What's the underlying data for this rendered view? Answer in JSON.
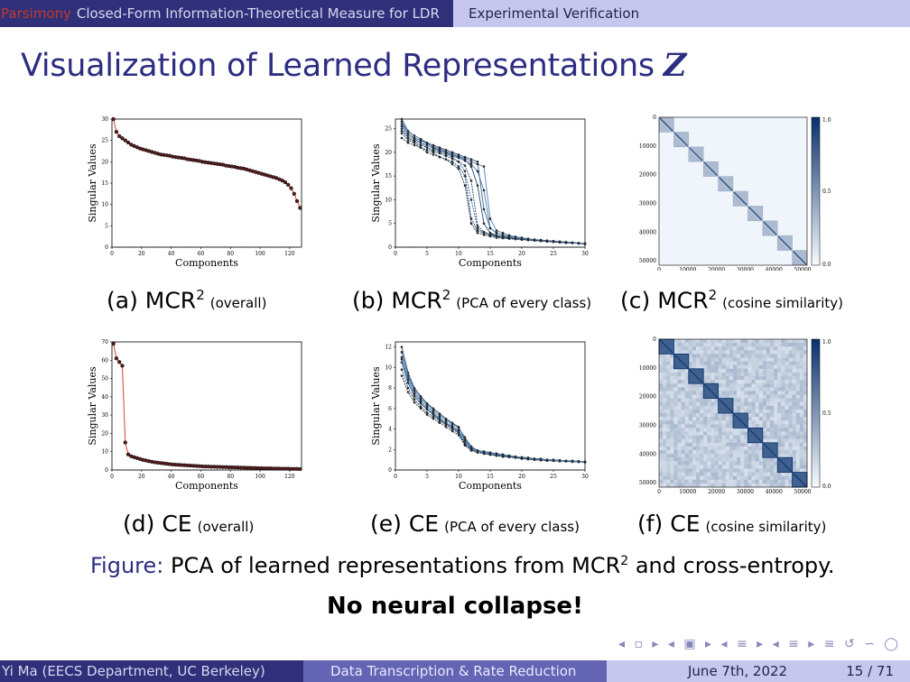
{
  "header": {
    "section": "Parsimony",
    "left_title": "Closed-Form Information-Theoretical Measure for LDR",
    "right_title": "Experimental Verification"
  },
  "slide": {
    "title": "Visualization of Learned Representations",
    "title_symbol": "Z"
  },
  "panels": [
    {
      "letter": "(a)",
      "method": "MCR",
      "sup": "2",
      "note": "(overall)"
    },
    {
      "letter": "(b)",
      "method": "MCR",
      "sup": "2",
      "note": "(PCA of every class)"
    },
    {
      "letter": "(c)",
      "method": "MCR",
      "sup": "2",
      "note": "(cosine similarity)"
    },
    {
      "letter": "(d)",
      "method": "CE",
      "sup": "",
      "note": "(overall)"
    },
    {
      "letter": "(e)",
      "method": "CE",
      "sup": "",
      "note": "(PCA of every class)"
    },
    {
      "letter": "(f)",
      "method": "CE",
      "sup": "",
      "note": "(cosine similarity)"
    }
  ],
  "figure": {
    "label": "Figure:",
    "text_a": "PCA of learned representations from MCR",
    "sup": "2",
    "text_b": "and cross-entropy."
  },
  "emphasis": "No neural collapse!",
  "nav_symbols": "◂ ▫ ▸ ◂ ▣ ▸ ◂ ≡ ▸ ◂ ≡ ▸ ≡ ↺ ∽ ◯",
  "footer": {
    "author": "Yi Ma (EECS Department, UC Berkeley)",
    "talk": "Data Transcription & Rate Reduction",
    "date": "June 7th, 2022",
    "page": "15 / 71"
  },
  "chart_data": [
    {
      "id": "a",
      "type": "scatter",
      "xlabel": "Components",
      "ylabel": "Singular Values",
      "xlim": [
        0,
        128
      ],
      "ylim": [
        0,
        30
      ],
      "xticks": [
        0,
        20,
        40,
        60,
        80,
        100,
        120
      ],
      "yticks": [
        0,
        5,
        10,
        15,
        20,
        25,
        30
      ],
      "x": [
        1,
        3,
        5,
        7,
        9,
        11,
        13,
        15,
        17,
        19,
        21,
        23,
        25,
        27,
        29,
        31,
        33,
        35,
        37,
        39,
        41,
        43,
        45,
        47,
        49,
        51,
        53,
        55,
        57,
        59,
        61,
        63,
        65,
        67,
        69,
        71,
        73,
        75,
        77,
        79,
        81,
        83,
        85,
        87,
        89,
        91,
        93,
        95,
        97,
        99,
        101,
        103,
        105,
        107,
        109,
        111,
        113,
        115,
        117,
        119,
        121,
        123,
        125,
        127
      ],
      "y": [
        30,
        27,
        26,
        25.5,
        25,
        24.5,
        24,
        23.7,
        23.4,
        23.1,
        22.9,
        22.7,
        22.5,
        22.3,
        22.1,
        21.9,
        21.7,
        21.6,
        21.5,
        21.4,
        21.2,
        21.1,
        21,
        20.9,
        20.8,
        20.6,
        20.5,
        20.4,
        20.3,
        20.2,
        20,
        19.9,
        19.8,
        19.7,
        19.6,
        19.5,
        19.4,
        19.3,
        19.1,
        19,
        18.9,
        18.8,
        18.6,
        18.5,
        18.4,
        18.2,
        18,
        17.8,
        17.6,
        17.4,
        17.2,
        17,
        16.8,
        16.6,
        16.4,
        16.2,
        15.9,
        15.6,
        15.2,
        14.6,
        13.8,
        12.5,
        10.8,
        9.2
      ]
    },
    {
      "id": "b",
      "type": "line",
      "xlabel": "Components",
      "ylabel": "Singular Values",
      "xlim": [
        0,
        30
      ],
      "ylim": [
        0,
        27
      ],
      "xticks": [
        0,
        5,
        10,
        15,
        20,
        25,
        30
      ],
      "yticks": [
        0,
        5,
        10,
        15,
        20,
        25
      ],
      "x": [
        1,
        2,
        3,
        4,
        5,
        6,
        7,
        8,
        9,
        10,
        11,
        12,
        13,
        14,
        15,
        16,
        17,
        18,
        19,
        20,
        21,
        22,
        23,
        24,
        25,
        26,
        27,
        28,
        29,
        30
      ],
      "series": [
        {
          "values": [
            26,
            24,
            23,
            22.5,
            22,
            21,
            20.5,
            20,
            19.5,
            19,
            18.5,
            17,
            13,
            5,
            3,
            2.5,
            2.2,
            2,
            1.8,
            1.7,
            1.6,
            1.5,
            1.4,
            1.3,
            1.2,
            1.1,
            1,
            0.9,
            0.8,
            0.7
          ]
        },
        {
          "values": [
            25,
            23,
            22.5,
            22,
            21,
            20.5,
            20,
            19.5,
            19,
            18,
            16,
            10,
            4,
            3,
            2.5,
            2.2,
            2,
            1.9,
            1.8,
            1.7,
            1.6,
            1.5,
            1.4,
            1.3,
            1.2,
            1.1,
            1,
            0.9,
            0.8,
            0.7
          ]
        },
        {
          "values": [
            27,
            24.5,
            23.5,
            22.8,
            22,
            21.5,
            21,
            20.5,
            20,
            19.5,
            19,
            18.5,
            18,
            8,
            4,
            3,
            2.5,
            2.2,
            2,
            1.8,
            1.6,
            1.5,
            1.4,
            1.3,
            1.2,
            1.1,
            1,
            0.9,
            0.8,
            0.7
          ]
        },
        {
          "values": [
            24,
            22.5,
            22,
            21,
            20.5,
            20,
            19,
            18.5,
            18,
            17,
            15,
            6,
            3.5,
            3,
            2.6,
            2.3,
            2,
            1.8,
            1.7,
            1.6,
            1.5,
            1.4,
            1.3,
            1.2,
            1.1,
            1,
            0.9,
            0.9,
            0.8,
            0.7
          ]
        },
        {
          "values": [
            25.5,
            23.5,
            22.8,
            22,
            21.5,
            20.8,
            20.2,
            19.8,
            19.2,
            18.8,
            18.2,
            17.5,
            16,
            12,
            4,
            3,
            2.6,
            2.3,
            2,
            1.8,
            1.7,
            1.6,
            1.5,
            1.4,
            1.2,
            1.1,
            1,
            0.9,
            0.8,
            0.7
          ]
        },
        {
          "values": [
            23,
            22,
            21.5,
            21,
            20,
            19.5,
            19,
            18.5,
            17.5,
            16.5,
            13,
            5,
            3,
            2.6,
            2.3,
            2,
            1.9,
            1.8,
            1.7,
            1.6,
            1.5,
            1.4,
            1.3,
            1.2,
            1.1,
            1,
            0.9,
            0.9,
            0.8,
            0.7
          ]
        },
        {
          "values": [
            26.5,
            24,
            23,
            22.5,
            21.8,
            21.2,
            20.8,
            20.2,
            19.8,
            19.2,
            18.8,
            18,
            17.5,
            17,
            6,
            3.5,
            3,
            2.5,
            2.2,
            2,
            1.8,
            1.6,
            1.5,
            1.4,
            1.3,
            1.2,
            1.1,
            1,
            0.9,
            0.8
          ]
        },
        {
          "values": [
            24.5,
            23,
            22.2,
            21.5,
            21,
            20.2,
            19.8,
            19.2,
            18.6,
            18,
            17.2,
            14,
            4.5,
            3.2,
            2.8,
            2.4,
            2.1,
            1.9,
            1.8,
            1.7,
            1.6,
            1.5,
            1.4,
            1.3,
            1.2,
            1.1,
            1,
            0.9,
            0.8,
            0.7
          ]
        }
      ]
    },
    {
      "id": "c",
      "type": "heatmap",
      "xticks": [
        "0",
        "10000",
        "20000",
        "30000",
        "40000",
        "50000"
      ],
      "yticks": [
        "0",
        "10000",
        "20000",
        "30000",
        "40000",
        "50000"
      ],
      "colorbar_ticks": [
        "1.0",
        "0.5",
        "0.0"
      ],
      "blocks": 10,
      "offdiag_intensity": 0.03,
      "block_intensity": 0.35
    },
    {
      "id": "d",
      "type": "scatter",
      "xlabel": "Components",
      "ylabel": "Singular Values",
      "xlim": [
        0,
        128
      ],
      "ylim": [
        0,
        70
      ],
      "xticks": [
        0,
        20,
        40,
        60,
        80,
        100,
        120
      ],
      "yticks": [
        0,
        10,
        20,
        30,
        40,
        50,
        60,
        70
      ],
      "x": [
        1,
        3,
        5,
        7,
        9,
        11,
        13,
        15,
        17,
        19,
        21,
        23,
        25,
        27,
        29,
        31,
        33,
        35,
        37,
        39,
        41,
        43,
        45,
        47,
        49,
        51,
        53,
        55,
        57,
        59,
        61,
        63,
        65,
        67,
        69,
        71,
        73,
        75,
        77,
        79,
        81,
        83,
        85,
        87,
        89,
        91,
        93,
        95,
        97,
        99,
        101,
        103,
        105,
        107,
        109,
        111,
        113,
        115,
        117,
        119,
        121,
        123,
        125,
        127
      ],
      "y": [
        69,
        61,
        59,
        57,
        15,
        8.5,
        7.5,
        7,
        6.5,
        6,
        5.5,
        5.2,
        4.8,
        4.5,
        4.2,
        4,
        3.8,
        3.6,
        3.4,
        3.2,
        3,
        2.9,
        2.8,
        2.7,
        2.6,
        2.5,
        2.4,
        2.3,
        2.2,
        2.1,
        2,
        1.9,
        1.9,
        1.8,
        1.8,
        1.7,
        1.7,
        1.6,
        1.6,
        1.5,
        1.5,
        1.4,
        1.4,
        1.3,
        1.3,
        1.2,
        1.2,
        1.1,
        1.1,
        1.0,
        1.0,
        0.9,
        0.9,
        0.9,
        0.8,
        0.8,
        0.8,
        0.7,
        0.7,
        0.7,
        0.6,
        0.6,
        0.6,
        0.5
      ]
    },
    {
      "id": "e",
      "type": "line",
      "xlabel": "Components",
      "ylabel": "Singular Values",
      "xlim": [
        0,
        30
      ],
      "ylim": [
        0,
        12.5
      ],
      "xticks": [
        0,
        5,
        10,
        15,
        20,
        25,
        30
      ],
      "yticks": [
        0,
        2,
        4,
        6,
        8,
        10,
        12
      ],
      "x": [
        1,
        2,
        3,
        4,
        5,
        6,
        7,
        8,
        9,
        10,
        11,
        12,
        13,
        14,
        15,
        16,
        17,
        18,
        19,
        20,
        21,
        22,
        23,
        24,
        25,
        26,
        27,
        28,
        29,
        30
      ],
      "series": [
        {
          "values": [
            12,
            9.5,
            8,
            7.2,
            6.5,
            6,
            5.5,
            5,
            4.6,
            4.2,
            3,
            2.2,
            1.9,
            1.8,
            1.7,
            1.6,
            1.5,
            1.4,
            1.3,
            1.2,
            1.2,
            1.1,
            1.1,
            1,
            1,
            0.95,
            0.9,
            0.9,
            0.85,
            0.8
          ]
        },
        {
          "values": [
            11,
            9,
            7.6,
            6.8,
            6.2,
            5.6,
            5.1,
            4.7,
            4.3,
            3.9,
            2.8,
            2.1,
            1.8,
            1.7,
            1.6,
            1.5,
            1.4,
            1.3,
            1.25,
            1.2,
            1.1,
            1.05,
            1,
            1,
            0.95,
            0.9,
            0.9,
            0.85,
            0.8,
            0.8
          ]
        },
        {
          "values": [
            10.5,
            8.5,
            7.2,
            6.5,
            5.9,
            5.4,
            4.9,
            4.5,
            4.1,
            3.7,
            2.6,
            2,
            1.8,
            1.7,
            1.6,
            1.5,
            1.4,
            1.3,
            1.2,
            1.15,
            1.1,
            1.05,
            1,
            0.95,
            0.9,
            0.9,
            0.85,
            0.85,
            0.8,
            0.8
          ]
        },
        {
          "values": [
            9.8,
            8,
            6.9,
            6.2,
            5.6,
            5.2,
            4.8,
            4.4,
            4,
            3.6,
            2.5,
            2,
            1.8,
            1.6,
            1.5,
            1.4,
            1.35,
            1.3,
            1.2,
            1.15,
            1.1,
            1,
            1,
            0.95,
            0.9,
            0.9,
            0.85,
            0.8,
            0.8,
            0.75
          ]
        },
        {
          "values": [
            11.5,
            9.2,
            7.8,
            7,
            6.4,
            5.8,
            5.3,
            4.9,
            4.5,
            4.1,
            3.2,
            2.3,
            1.9,
            1.8,
            1.7,
            1.6,
            1.5,
            1.4,
            1.3,
            1.25,
            1.2,
            1.1,
            1.05,
            1,
            1,
            0.95,
            0.9,
            0.9,
            0.85,
            0.8
          ]
        },
        {
          "values": [
            9.2,
            7.6,
            6.6,
            6,
            5.4,
            5,
            4.6,
            4.2,
            3.8,
            3.4,
            2.4,
            1.9,
            1.7,
            1.6,
            1.5,
            1.4,
            1.3,
            1.25,
            1.2,
            1.1,
            1.05,
            1,
            0.95,
            0.9,
            0.9,
            0.85,
            0.85,
            0.8,
            0.8,
            0.75
          ]
        },
        {
          "values": [
            10.8,
            8.8,
            7.4,
            6.7,
            6,
            5.5,
            5,
            4.6,
            4.2,
            3.8,
            2.9,
            2.1,
            1.8,
            1.7,
            1.6,
            1.5,
            1.45,
            1.35,
            1.3,
            1.2,
            1.15,
            1.1,
            1,
            1,
            0.95,
            0.9,
            0.9,
            0.85,
            0.8,
            0.8
          ]
        }
      ]
    },
    {
      "id": "f",
      "type": "heatmap",
      "xticks": [
        "0",
        "10000",
        "20000",
        "30000",
        "40000",
        "50000"
      ],
      "yticks": [
        "0",
        "10000",
        "20000",
        "30000",
        "40000",
        "50000"
      ],
      "colorbar_ticks": [
        "1.0",
        "0.5",
        "0.0"
      ],
      "blocks": 10,
      "offdiag_intensity": 0.22,
      "block_intensity": 0.85
    }
  ]
}
